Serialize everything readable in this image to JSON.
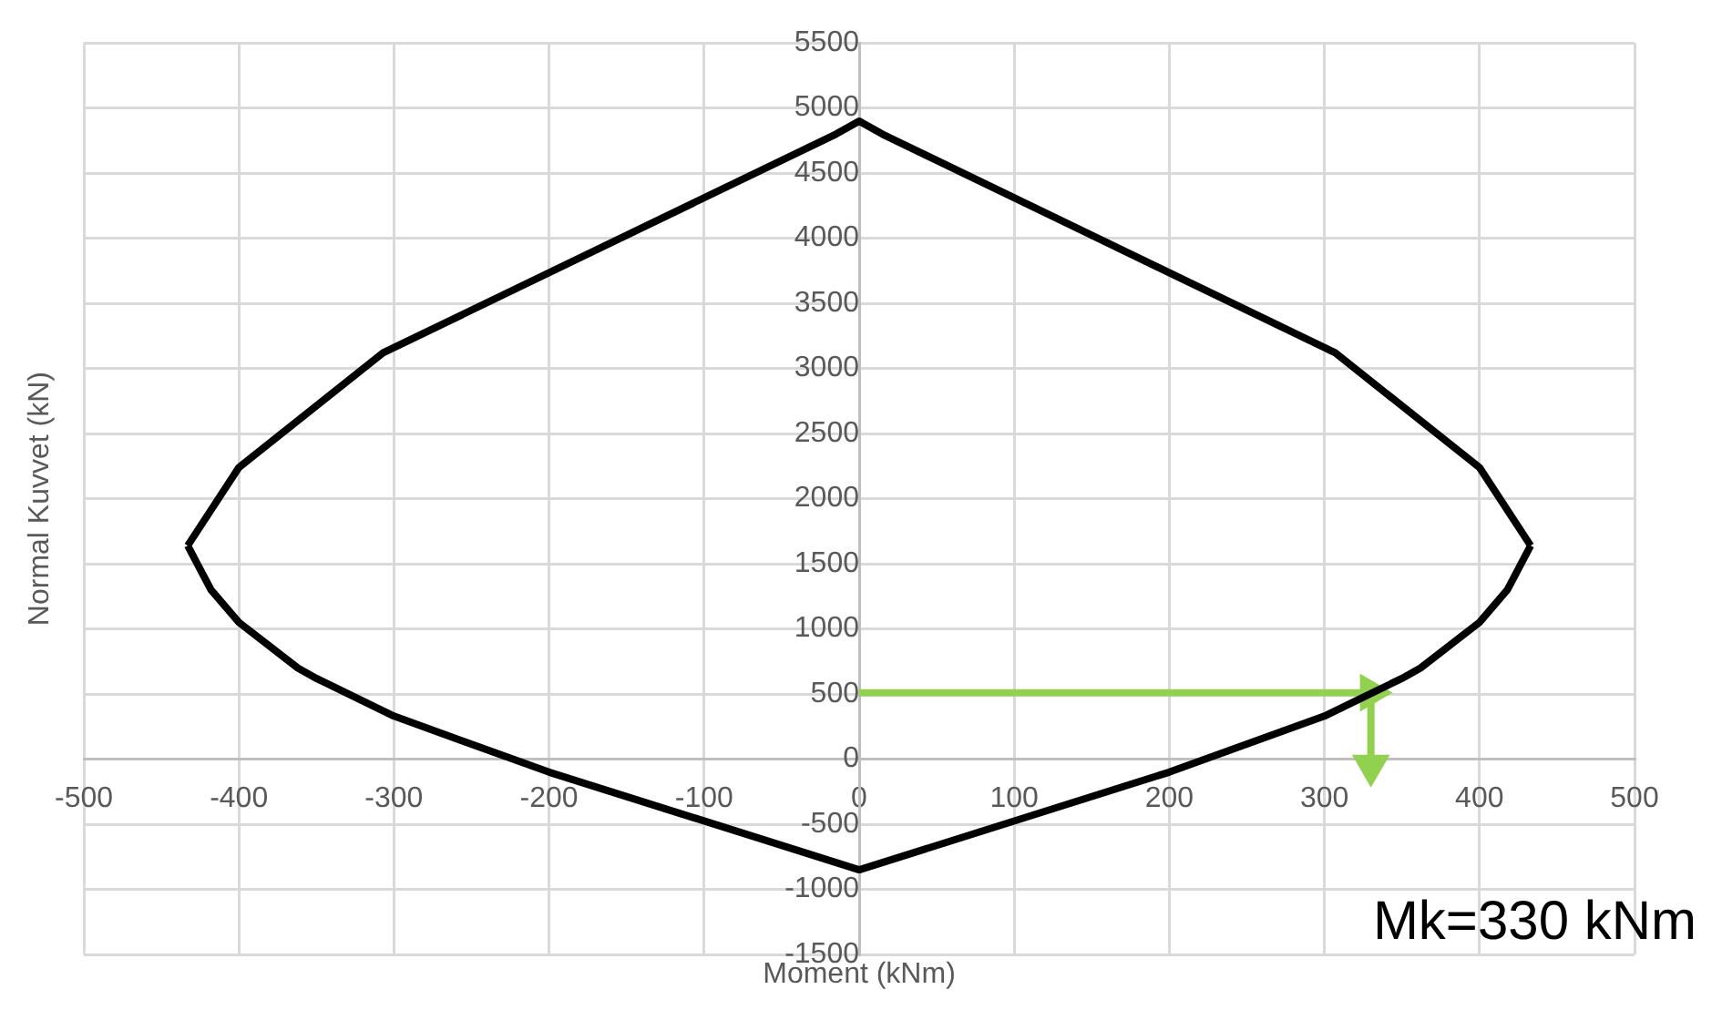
{
  "chart_data": {
    "type": "line",
    "xlabel": "Moment (kNm)",
    "ylabel": "Normal Kuvvet (kN)",
    "xlim": [
      -500,
      500
    ],
    "xticks": [
      -500,
      -400,
      -300,
      -200,
      -100,
      0,
      100,
      200,
      300,
      400,
      500
    ],
    "ylim": [
      -1500,
      5500
    ],
    "yticks": [
      -1500,
      -1000,
      -500,
      0,
      500,
      1000,
      1500,
      2000,
      2500,
      3000,
      3500,
      4000,
      4500,
      5000,
      5500
    ],
    "grid": true,
    "legend": false,
    "marker": "none",
    "line_style": "solid",
    "series": [
      {
        "color": "#000000",
        "x": [
          -433,
          -400,
          -307,
          -15,
          0,
          15,
          307,
          400,
          433
        ],
        "values": [
          1640,
          2240,
          3120,
          4800,
          4900,
          4800,
          3120,
          2240,
          1640
        ]
      },
      {
        "color": "#000000",
        "x": [
          -433,
          -418,
          -400,
          -362,
          -350,
          -300,
          -200,
          0,
          200,
          300,
          350,
          362,
          400,
          418,
          433
        ],
        "values": [
          1640,
          1300,
          1050,
          700,
          620,
          330,
          -100,
          -850,
          -100,
          330,
          620,
          700,
          1050,
          1300,
          1640
        ]
      },
      {
        "color": "#92d050",
        "marker": "triangle",
        "x": [
          0,
          330,
          330
        ],
        "values": [
          510,
          510,
          -50
        ]
      }
    ],
    "annotations": [
      "Mk=330 kNm"
    ]
  }
}
